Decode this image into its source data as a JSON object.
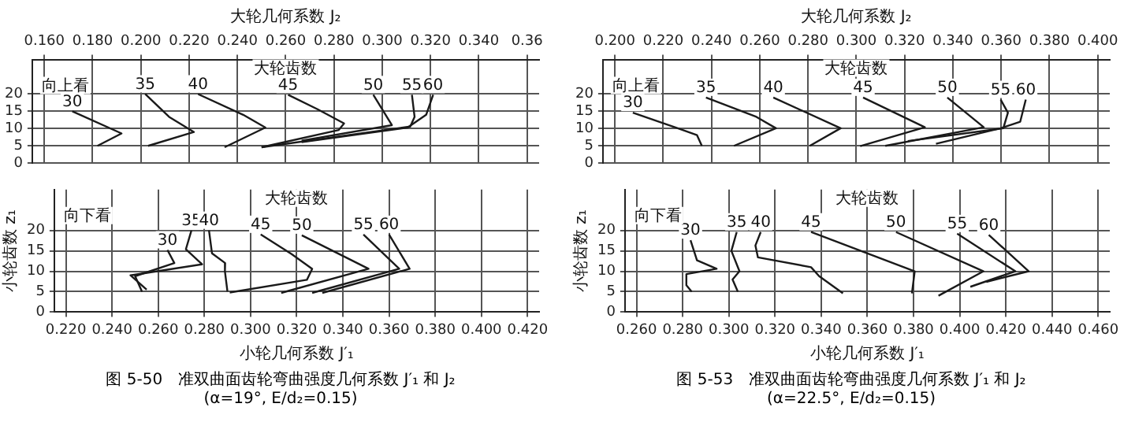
{
  "chart_data": [
    {
      "type": "line",
      "xlabel": "大轮几何系数 J₂",
      "xlim": [
        0.155,
        0.365
      ],
      "xticks": [
        {
          "value": 0.16,
          "label": "0.160"
        },
        {
          "value": 0.18,
          "label": "0.180"
        },
        {
          "value": 0.2,
          "label": "0.200"
        },
        {
          "value": 0.22,
          "label": "0.220"
        },
        {
          "value": 0.24,
          "label": "0.240"
        },
        {
          "value": 0.26,
          "label": "0.260"
        },
        {
          "value": 0.28,
          "label": "0.280"
        },
        {
          "value": 0.3,
          "label": "0.300"
        },
        {
          "value": 0.32,
          "label": "0.320"
        },
        {
          "value": 0.34,
          "label": "0.340"
        },
        {
          "value": 0.36,
          "label": "0.36"
        }
      ],
      "ylim": [
        0,
        30
      ],
      "yticks": [
        0,
        5,
        10,
        15,
        20
      ],
      "grid": true,
      "marker": "none",
      "annotations": [
        "向上看",
        "大轮齿数"
      ],
      "series": [
        {
          "name": "30",
          "color": "#1a1a1a",
          "x": [
            0.1716,
            0.192,
            0.182
          ],
          "values": [
            15,
            8.6,
            5
          ]
        },
        {
          "name": "35",
          "color": "#1a1a1a",
          "x": [
            0.2018,
            0.2117,
            0.222,
            0.203
          ],
          "values": [
            20,
            13.4,
            9,
            5
          ]
        },
        {
          "name": "40",
          "color": "#1a1a1a",
          "x": [
            0.2237,
            0.2424,
            0.2516,
            0.2347
          ],
          "values": [
            20,
            14,
            10.3,
            4.6
          ]
        },
        {
          "name": "45",
          "color": "#1a1a1a",
          "x": [
            0.261,
            0.2732,
            0.2842,
            0.282,
            0.25
          ],
          "values": [
            19.8,
            15.6,
            11.5,
            9.6,
            4.6
          ]
        },
        {
          "name": "50",
          "color": "#1a1a1a",
          "x": [
            0.2963,
            0.304,
            0.2666
          ],
          "values": [
            19.8,
            11,
            6.5
          ]
        },
        {
          "name": "55",
          "color": "#1a1a1a",
          "x": [
            0.3123,
            0.3134,
            0.3116,
            0.25
          ],
          "values": [
            19.8,
            13.4,
            10.6,
            4.6
          ]
        },
        {
          "name": "60",
          "color": "#1a1a1a",
          "x": [
            0.3211,
            0.3182,
            0.3105,
            0.2666
          ],
          "values": [
            19.8,
            14,
            10.3,
            6.1
          ]
        }
      ]
    },
    {
      "type": "line",
      "title": "图 5-50　准双曲面齿轮弯曲强度几何系数 J′₁ 和 J₂",
      "subtitle": "(α=19°, E/d₂=0.15)",
      "xlabel": "小轮几何系数 J′₁",
      "ylabel": "小轮齿数 z₁",
      "xlim": [
        0.215,
        0.425
      ],
      "xticks": [
        {
          "value": 0.22,
          "label": "0.220"
        },
        {
          "value": 0.24,
          "label": "0.240"
        },
        {
          "value": 0.26,
          "label": "0.260"
        },
        {
          "value": 0.28,
          "label": "0.280"
        },
        {
          "value": 0.3,
          "label": "0.300"
        },
        {
          "value": 0.32,
          "label": "0.320"
        },
        {
          "value": 0.34,
          "label": "0.340"
        },
        {
          "value": 0.36,
          "label": "0.360"
        },
        {
          "value": 0.38,
          "label": "0.380"
        },
        {
          "value": 0.4,
          "label": "0.400"
        },
        {
          "value": 0.42,
          "label": "0.420"
        }
      ],
      "ylim": [
        0,
        30
      ],
      "yticks": [
        0,
        5,
        10,
        15,
        20
      ],
      "grid": true,
      "marker": "none",
      "annotations": [
        "向下看",
        "大轮齿数"
      ],
      "series": [
        {
          "name": "30",
          "color": "#1a1a1a",
          "x": [
            0.264,
            0.267,
            0.25,
            0.253
          ],
          "values": [
            15.2,
            12,
            8.8,
            5
          ]
        },
        {
          "name": "35",
          "color": "#1a1a1a",
          "x": [
            0.2744,
            0.272,
            0.279,
            0.248,
            0.255
          ],
          "values": [
            20,
            15.4,
            11.7,
            9,
            5.5
          ]
        },
        {
          "name": "40",
          "color": "#1a1a1a",
          "x": [
            0.282,
            0.2833,
            0.289,
            0.2889,
            0.29
          ],
          "values": [
            20,
            14.4,
            12,
            10,
            5
          ]
        },
        {
          "name": "45",
          "color": "#1a1a1a",
          "x": [
            0.3044,
            0.3178,
            0.3267,
            0.3244,
            0.291
          ],
          "values": [
            19,
            14.2,
            10.6,
            7.9,
            4.8
          ]
        },
        {
          "name": "50",
          "color": "#1a1a1a",
          "x": [
            0.3222,
            0.3511,
            0.3133
          ],
          "values": [
            18.8,
            10.6,
            4.7
          ]
        },
        {
          "name": "55",
          "color": "#1a1a1a",
          "x": [
            0.3489,
            0.3644,
            0.3267
          ],
          "values": [
            19,
            10.6,
            4.7
          ]
        },
        {
          "name": "60",
          "color": "#1a1a1a",
          "x": [
            0.36,
            0.3689,
            0.3311
          ],
          "values": [
            19,
            10.6,
            4.7
          ]
        }
      ]
    },
    {
      "type": "line",
      "xlabel": "大轮几何系数 J₂",
      "xlim": [
        0.195,
        0.405
      ],
      "xticks": [
        {
          "value": 0.2,
          "label": "0.200"
        },
        {
          "value": 0.22,
          "label": "0.220"
        },
        {
          "value": 0.24,
          "label": "0.240"
        },
        {
          "value": 0.26,
          "label": "0.260"
        },
        {
          "value": 0.28,
          "label": "0.280"
        },
        {
          "value": 0.3,
          "label": "0.300"
        },
        {
          "value": 0.32,
          "label": "0.320"
        },
        {
          "value": 0.34,
          "label": "0.340"
        },
        {
          "value": 0.36,
          "label": "0.360"
        },
        {
          "value": 0.38,
          "label": "0.380"
        },
        {
          "value": 0.4,
          "label": "0.400"
        }
      ],
      "ylim": [
        0,
        30
      ],
      "yticks": [
        0,
        5,
        10,
        15,
        20
      ],
      "grid": true,
      "marker": "none",
      "annotations": [
        "向上看",
        "大轮齿数"
      ],
      "series": [
        {
          "name": "30",
          "color": "#1a1a1a",
          "x": [
            0.2074,
            0.226,
            0.234,
            0.236
          ],
          "values": [
            14.6,
            10.1,
            8.1,
            5
          ]
        },
        {
          "name": "35",
          "color": "#1a1a1a",
          "x": [
            0.2377,
            0.2586,
            0.2667,
            0.2493
          ],
          "values": [
            19,
            13.4,
            10.1,
            5
          ]
        },
        {
          "name": "40",
          "color": "#1a1a1a",
          "x": [
            0.2656,
            0.2935,
            0.2807
          ],
          "values": [
            19,
            10.1,
            5
          ]
        },
        {
          "name": "45",
          "color": "#1a1a1a",
          "x": [
            0.3028,
            0.3284,
            0.3016
          ],
          "values": [
            19,
            10.4,
            4.9
          ]
        },
        {
          "name": "50",
          "color": "#1a1a1a",
          "x": [
            0.3377,
            0.3528,
            0.312
          ],
          "values": [
            19,
            10.4,
            5
          ]
        },
        {
          "name": "55",
          "color": "#1a1a1a",
          "x": [
            0.3598,
            0.3628,
            0.3609,
            0.3214
          ],
          "values": [
            18.4,
            14.6,
            10.1,
            6.4
          ]
        },
        {
          "name": "60",
          "color": "#1a1a1a",
          "x": [
            0.3702,
            0.3679,
            0.3598,
            0.333
          ],
          "values": [
            18.4,
            12,
            10.1,
            5.6
          ]
        }
      ]
    },
    {
      "type": "line",
      "title": "图 5-53　准双曲面齿轮弯曲强度几何系数 J′₁ 和 J₂",
      "subtitle": "(α=22.5°, E/d₂=0.15)",
      "xlabel": "小轮几何系数 J′₁",
      "ylabel": "小轮齿数 z₁",
      "xlim": [
        0.255,
        0.465
      ],
      "xticks": [
        {
          "value": 0.26,
          "label": "0.260"
        },
        {
          "value": 0.28,
          "label": "0.280"
        },
        {
          "value": 0.3,
          "label": "0.300"
        },
        {
          "value": 0.32,
          "label": "0.320"
        },
        {
          "value": 0.34,
          "label": "0.340"
        },
        {
          "value": 0.36,
          "label": "0.360"
        },
        {
          "value": 0.38,
          "label": "0.380"
        },
        {
          "value": 0.4,
          "label": "0.400"
        },
        {
          "value": 0.42,
          "label": "0.420"
        },
        {
          "value": 0.44,
          "label": "0.440"
        },
        {
          "value": 0.46,
          "label": "0.460"
        }
      ],
      "ylim": [
        0,
        30
      ],
      "yticks": [
        0,
        5,
        10,
        15,
        20
      ],
      "grid": true,
      "marker": "none",
      "annotations": [
        "向下看",
        "大轮齿数"
      ],
      "series": [
        {
          "name": "30",
          "color": "#1a1a1a",
          "x": [
            0.2834,
            0.2862,
            0.2947,
            0.2816,
            0.2816,
            0.2839
          ],
          "values": [
            17.6,
            12.7,
            10.6,
            9.3,
            6.6,
            5
          ]
        },
        {
          "name": "35",
          "color": "#1a1a1a",
          "x": [
            0.3034,
            0.3011,
            0.3046,
            0.3016,
            0.3039
          ],
          "values": [
            19.6,
            15,
            10,
            8,
            5
          ]
        },
        {
          "name": "40",
          "color": "#1a1a1a",
          "x": [
            0.3138,
            0.3115,
            0.3126,
            0.3356,
            0.3391,
            0.3494
          ],
          "values": [
            19.6,
            16.3,
            13.4,
            11,
            8.8,
            4.6
          ]
        },
        {
          "name": "45",
          "color": "#1a1a1a",
          "x": [
            0.3356,
            0.3805,
            0.3793
          ],
          "values": [
            19.6,
            10,
            4.6
          ]
        },
        {
          "name": "50",
          "color": "#1a1a1a",
          "x": [
            0.3724,
            0.4103,
            0.3908
          ],
          "values": [
            19.6,
            10,
            4
          ]
        },
        {
          "name": "55",
          "color": "#1a1a1a",
          "x": [
            0.3989,
            0.4241,
            0.4046
          ],
          "values": [
            19.2,
            10,
            6.2
          ]
        },
        {
          "name": "60",
          "color": "#1a1a1a",
          "x": [
            0.4126,
            0.4299,
            0.4115
          ],
          "values": [
            18.9,
            10,
            7.4
          ]
        }
      ]
    }
  ]
}
